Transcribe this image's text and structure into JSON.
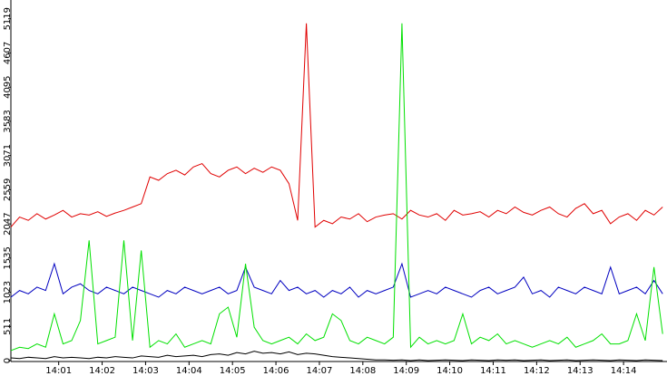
{
  "chart_data": {
    "type": "line",
    "x": [
      -0.1,
      0.1,
      0.3,
      0.5,
      0.7,
      0.9,
      1.1,
      1.3,
      1.5,
      1.7,
      1.9,
      2.1,
      2.3,
      2.5,
      2.7,
      2.9,
      3.1,
      3.3,
      3.5,
      3.7,
      3.9,
      4.1,
      4.3,
      4.5,
      4.7,
      4.9,
      5.1,
      5.3,
      5.5,
      5.7,
      5.9,
      6.1,
      6.3,
      6.5,
      6.7,
      6.9,
      7.1,
      7.3,
      7.5,
      7.7,
      7.9,
      8.1,
      8.3,
      8.5,
      8.7,
      8.9,
      9.1,
      9.3,
      9.5,
      9.7,
      9.9,
      10.1,
      10.3,
      10.5,
      10.7,
      10.9,
      11.1,
      11.3,
      11.5,
      11.7,
      11.9,
      12.1,
      12.3,
      12.5,
      12.7,
      12.9,
      13.1,
      13.3,
      13.5,
      13.7,
      13.9,
      14.1,
      14.3,
      14.5,
      14.7,
      14.9
    ],
    "series": [
      {
        "color": "#e00000",
        "values": [
          2000,
          2150,
          2100,
          2200,
          2120,
          2180,
          2250,
          2150,
          2200,
          2180,
          2230,
          2160,
          2210,
          2250,
          2300,
          2350,
          2750,
          2700,
          2800,
          2850,
          2780,
          2900,
          2950,
          2800,
          2750,
          2850,
          2900,
          2800,
          2880,
          2820,
          2900,
          2850,
          2650,
          2100,
          5050,
          2000,
          2100,
          2050,
          2150,
          2120,
          2200,
          2080,
          2150,
          2180,
          2200,
          2120,
          2250,
          2180,
          2150,
          2200,
          2100,
          2250,
          2180,
          2200,
          2230,
          2150,
          2250,
          2200,
          2300,
          2220,
          2180,
          2250,
          2300,
          2200,
          2150,
          2280,
          2350,
          2200,
          2250,
          2050,
          2150,
          2200,
          2100,
          2250,
          2180,
          2300
        ]
      },
      {
        "color": "#0000c0",
        "values": [
          950,
          1050,
          1000,
          1100,
          1050,
          1450,
          1000,
          1100,
          1150,
          1050,
          1000,
          1100,
          1050,
          1000,
          1100,
          1050,
          1000,
          950,
          1050,
          1000,
          1100,
          1050,
          1000,
          1050,
          1100,
          1000,
          1050,
          1400,
          1100,
          1050,
          1000,
          1200,
          1050,
          1100,
          1000,
          1050,
          950,
          1050,
          1000,
          1100,
          950,
          1050,
          1000,
          1050,
          1100,
          1450,
          950,
          1000,
          1050,
          1000,
          1100,
          1050,
          1000,
          950,
          1050,
          1100,
          1000,
          1050,
          1100,
          1250,
          1000,
          1050,
          950,
          1100,
          1050,
          1000,
          1100,
          1050,
          1000,
          1400,
          1000,
          1050,
          1100,
          1000,
          1200,
          1000
        ]
      },
      {
        "color": "#00e000",
        "values": [
          150,
          200,
          180,
          250,
          200,
          700,
          250,
          300,
          600,
          1800,
          250,
          300,
          350,
          1800,
          300,
          1650,
          200,
          300,
          250,
          400,
          200,
          250,
          300,
          250,
          700,
          800,
          350,
          1450,
          500,
          300,
          250,
          300,
          350,
          250,
          400,
          300,
          350,
          700,
          600,
          300,
          250,
          350,
          300,
          250,
          350,
          5050,
          200,
          350,
          250,
          300,
          250,
          300,
          700,
          250,
          350,
          300,
          400,
          250,
          300,
          250,
          200,
          250,
          300,
          250,
          350,
          200,
          250,
          300,
          400,
          250,
          250,
          300,
          700,
          300,
          1400,
          400
        ]
      },
      {
        "color": "#000000",
        "values": [
          40,
          30,
          50,
          40,
          30,
          60,
          40,
          50,
          40,
          30,
          50,
          40,
          60,
          50,
          40,
          70,
          60,
          50,
          80,
          60,
          70,
          80,
          60,
          90,
          100,
          80,
          120,
          100,
          140,
          110,
          120,
          100,
          130,
          90,
          110,
          100,
          80,
          60,
          50,
          40,
          30,
          20,
          10,
          10,
          5,
          10,
          0,
          10,
          0,
          5,
          10,
          5,
          0,
          10,
          5,
          0,
          10,
          5,
          10,
          0,
          5,
          10,
          0,
          5,
          10,
          0,
          5,
          10,
          5,
          0,
          10,
          5,
          0,
          10,
          5,
          0
        ]
      }
    ],
    "xlim": [
      -0.1,
      15.0
    ],
    "xticks": [
      {
        "value": 1,
        "label": "14:01"
      },
      {
        "value": 2,
        "label": "14:02"
      },
      {
        "value": 3,
        "label": "14:03"
      },
      {
        "value": 4,
        "label": "14:04"
      },
      {
        "value": 5,
        "label": "14:05"
      },
      {
        "value": 6,
        "label": "14:06"
      },
      {
        "value": 7,
        "label": "14:07"
      },
      {
        "value": 8,
        "label": "14:08"
      },
      {
        "value": 9,
        "label": "14:09"
      },
      {
        "value": 10,
        "label": "14:10"
      },
      {
        "value": 11,
        "label": "14:11"
      },
      {
        "value": 12,
        "label": "14:12"
      },
      {
        "value": 13,
        "label": "14:13"
      },
      {
        "value": 14,
        "label": "14:14"
      }
    ],
    "ylim": [
      0,
      5400
    ],
    "yticks": [
      0,
      511,
      1023,
      1535,
      2047,
      2559,
      3071,
      3583,
      4095,
      4607,
      5119
    ]
  }
}
